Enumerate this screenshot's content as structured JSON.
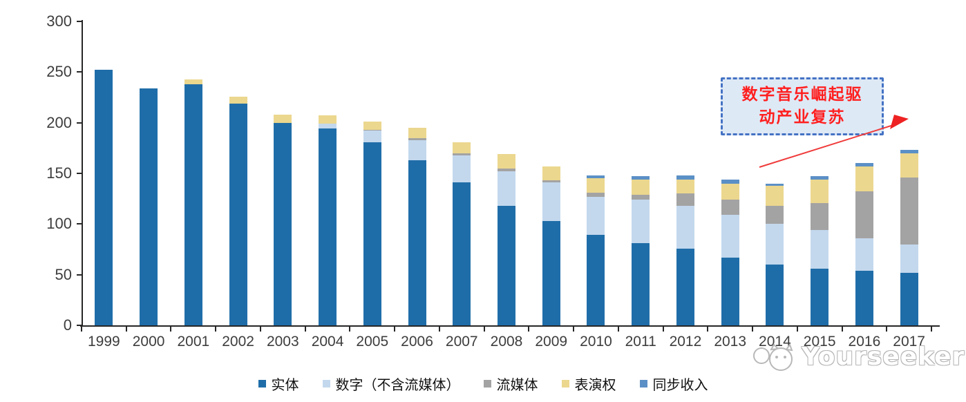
{
  "watermark": {
    "text": "Yourseeker"
  },
  "annotation": {
    "line1": "数字音乐崛起驱",
    "line2": "动产业复苏"
  },
  "legend": [
    {
      "key": "physical",
      "label": "实体",
      "color": "#1f6da8"
    },
    {
      "key": "digital",
      "label": "数字（不含流媒体）",
      "color": "#c3d8ed"
    },
    {
      "key": "streaming",
      "label": "流媒体",
      "color": "#a3a3a3"
    },
    {
      "key": "performance",
      "label": "表演权",
      "color": "#ebd78e"
    },
    {
      "key": "sync",
      "label": "同步收入",
      "color": "#5b90c6"
    }
  ],
  "chart_data": {
    "type": "bar",
    "stacked": true,
    "title": "",
    "xlabel": "",
    "ylabel": "",
    "ylim": [
      0,
      300
    ],
    "yticks": [
      0,
      50,
      100,
      150,
      200,
      250,
      300
    ],
    "grid": false,
    "legend_position": "bottom",
    "categories": [
      "1999",
      "2000",
      "2001",
      "2002",
      "2003",
      "2004",
      "2005",
      "2006",
      "2007",
      "2008",
      "2009",
      "2010",
      "2011",
      "2012",
      "2013",
      "2014",
      "2015",
      "2016",
      "2017"
    ],
    "series": [
      {
        "key": "physical",
        "name": "实体",
        "color": "#1f6da8",
        "values": [
          252,
          234,
          238,
          219,
          200,
          194,
          181,
          163,
          141,
          118,
          103,
          89,
          81,
          76,
          67,
          60,
          56,
          54,
          52
        ]
      },
      {
        "key": "digital",
        "name": "数字（不含流媒体）",
        "color": "#c3d8ed",
        "values": [
          0,
          0,
          0,
          0,
          0,
          5,
          11,
          20,
          27,
          34,
          38,
          38,
          43,
          42,
          42,
          40,
          38,
          32,
          28
        ]
      },
      {
        "key": "streaming",
        "name": "流媒体",
        "color": "#a3a3a3",
        "values": [
          0,
          0,
          0,
          0,
          0,
          0,
          1,
          2,
          2,
          3,
          2,
          4,
          5,
          12,
          15,
          18,
          27,
          46,
          66
        ]
      },
      {
        "key": "performance",
        "name": "表演权",
        "color": "#ebd78e",
        "values": [
          0,
          0,
          5,
          7,
          8,
          8,
          8,
          10,
          11,
          14,
          14,
          14,
          15,
          14,
          16,
          20,
          23,
          25,
          24
        ]
      },
      {
        "key": "sync",
        "name": "同步收入",
        "color": "#5b90c6",
        "values": [
          0,
          0,
          0,
          0,
          0,
          0,
          0,
          0,
          0,
          0,
          0,
          3,
          3,
          4,
          4,
          2,
          3,
          3,
          3
        ]
      }
    ],
    "annotation_text": "数字音乐崛起驱动产业复苏"
  }
}
